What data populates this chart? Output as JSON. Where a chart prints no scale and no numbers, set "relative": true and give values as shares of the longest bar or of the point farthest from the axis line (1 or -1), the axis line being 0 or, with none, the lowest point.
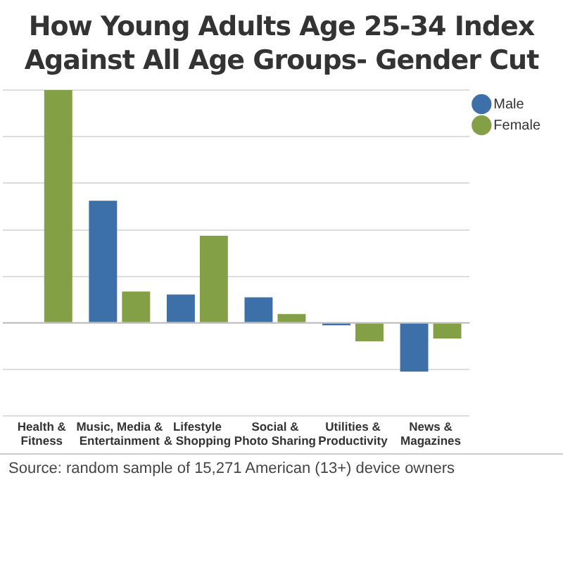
{
  "chart_data": {
    "type": "bar",
    "title": "How Young Adults Age 25-34 Index Against All Age Groups- Gender Cut",
    "categories": [
      "Health & Fitness",
      "Music, Media & Entertainment",
      "Lifestyle & Shopping",
      "Social & Photo Sharing",
      "Utilities & Productivity",
      "News & Magazines"
    ],
    "series": [
      {
        "name": "Male",
        "color": "#3d6fa8",
        "values": [
          null,
          0.525,
          0.122,
          0.11,
          -0.01,
          -0.209
        ]
      },
      {
        "name": "Female",
        "color": "#83a046",
        "values": [
          1,
          0.135,
          0.374,
          0.038,
          -0.079,
          -0.067
        ]
      }
    ],
    "relative": true,
    "grid": "y",
    "legend": "top right",
    "annotations": [
      "Source: random sample of 15,271 American (13+) device owners"
    ]
  }
}
